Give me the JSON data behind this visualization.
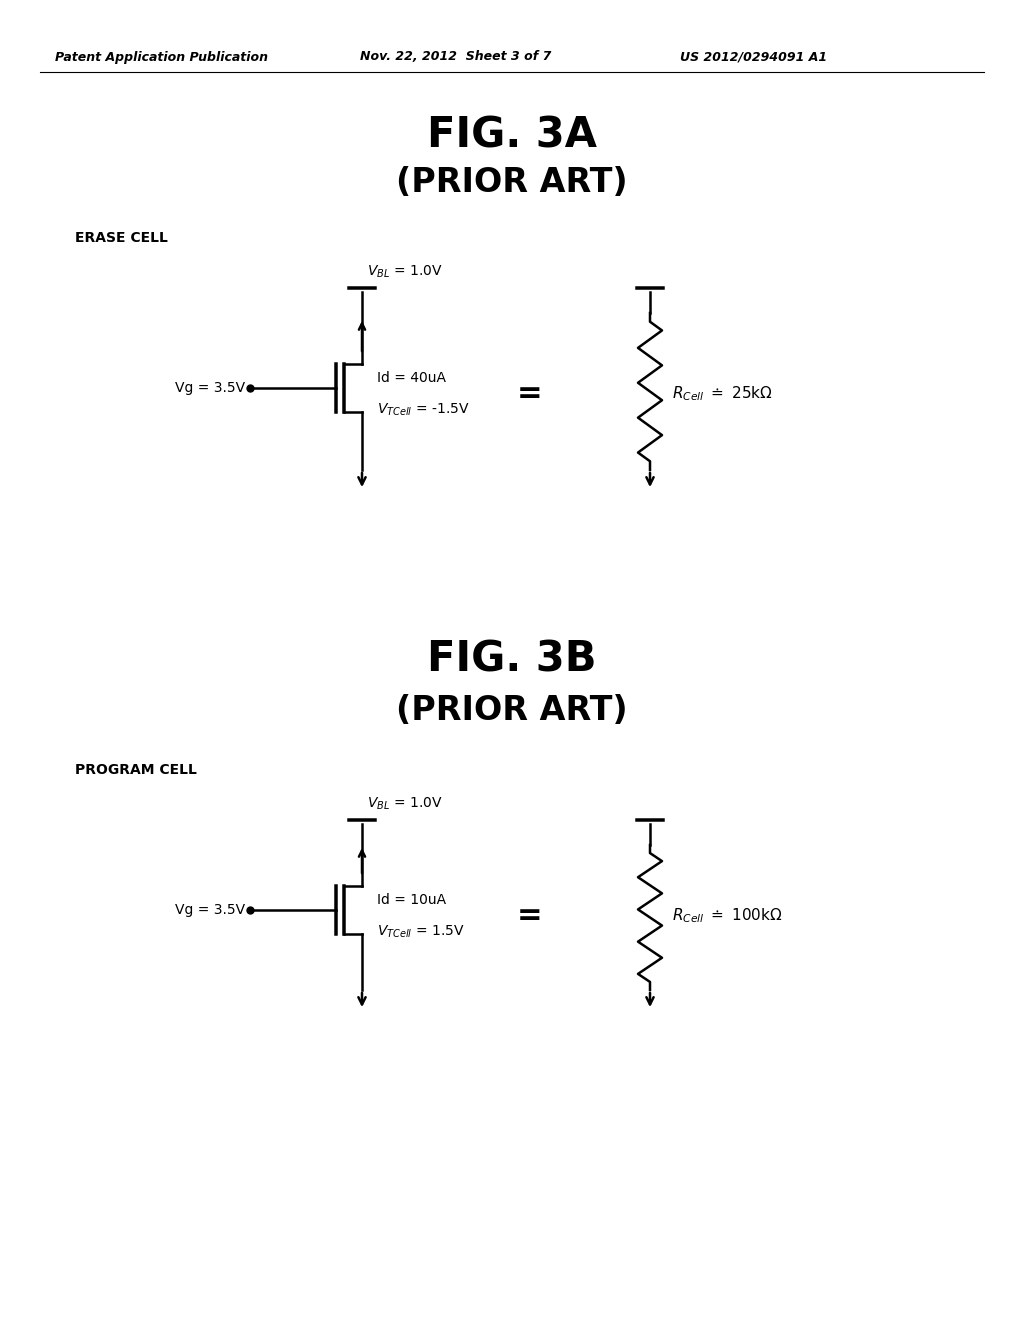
{
  "bg_color": "#ffffff",
  "header_left": "Patent Application Publication",
  "header_mid": "Nov. 22, 2012  Sheet 3 of 7",
  "header_right": "US 2012/0294091 A1",
  "fig3a_title": "FIG. 3A",
  "fig3a_subtitle": "(PRIOR ART)",
  "fig3b_title": "FIG. 3B",
  "fig3b_subtitle": "(PRIOR ART)",
  "erase_cell_label": "ERASE CELL",
  "program_cell_label": "PROGRAM CELL",
  "lw": 1.8,
  "font_size_header": 9,
  "font_size_title": 30,
  "font_size_subtitle": 24,
  "font_size_label": 10,
  "font_size_annotation": 10,
  "font_size_equals": 22,
  "font_size_rcell": 11
}
